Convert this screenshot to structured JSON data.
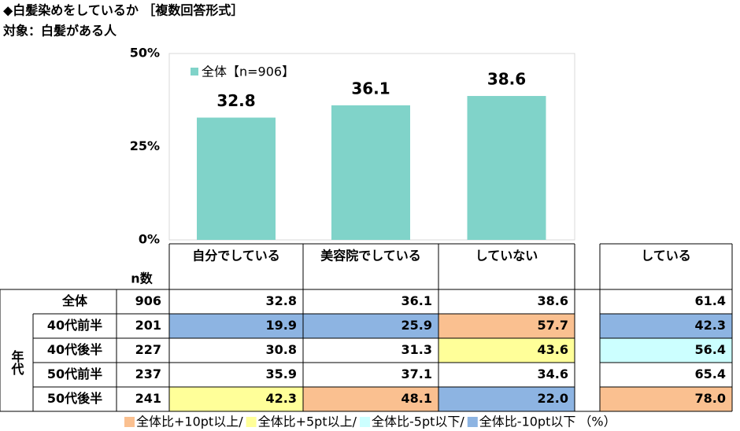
{
  "title": "◆白髪染めをしているか ［複数回答形式］",
  "subtitle": "対象：白髪がある人",
  "chart_data": {
    "type": "bar",
    "categories": [
      "自分でしている",
      "美容院でしている",
      "していない"
    ],
    "series": [
      {
        "name": "全体【n=906】",
        "color": "#80d3c9",
        "values": [
          32.8,
          36.1,
          38.6
        ]
      }
    ],
    "ylim": [
      0,
      50
    ],
    "yticks": [
      {
        "value": 0,
        "label": "0%"
      },
      {
        "value": 25,
        "label": "25%"
      },
      {
        "value": 50,
        "label": "50%"
      }
    ]
  },
  "table": {
    "n_header": "n数",
    "extra_header": "している",
    "group_label": "年代",
    "rows": [
      {
        "label": "全体",
        "n": 906,
        "values": [
          "32.8",
          "36.1",
          "38.6"
        ],
        "extra": "61.4",
        "colors": [
          null,
          null,
          null
        ],
        "extra_color": null
      },
      {
        "label": "40代前半",
        "n": 201,
        "values": [
          "19.9",
          "25.9",
          "57.7"
        ],
        "extra": "42.3",
        "colors": [
          "#8db4e2",
          "#8db4e2",
          "#fac090"
        ],
        "extra_color": "#8db4e2"
      },
      {
        "label": "40代後半",
        "n": 227,
        "values": [
          "30.8",
          "31.3",
          "43.6"
        ],
        "extra": "56.4",
        "colors": [
          null,
          null,
          "#ffff99"
        ],
        "extra_color": "#ccffff"
      },
      {
        "label": "50代前半",
        "n": 237,
        "values": [
          "35.9",
          "37.1",
          "34.6"
        ],
        "extra": "65.4",
        "colors": [
          null,
          null,
          null
        ],
        "extra_color": null
      },
      {
        "label": "50代後半",
        "n": 241,
        "values": [
          "42.3",
          "48.1",
          "22.0"
        ],
        "extra": "78.0",
        "colors": [
          "#ffff99",
          "#fac090",
          "#8db4e2"
        ],
        "extra_color": "#fac090"
      }
    ]
  },
  "legend": {
    "items": [
      {
        "label": "全体比+10pt以上/",
        "color": "#fac090"
      },
      {
        "label": "全体比+5pt以上/",
        "color": "#ffff99"
      },
      {
        "label": "全体比-5pt以下/",
        "color": "#ccffff"
      },
      {
        "label": "全体比-10pt以下",
        "color": "#8db4e2"
      }
    ],
    "unit": "（%）"
  }
}
